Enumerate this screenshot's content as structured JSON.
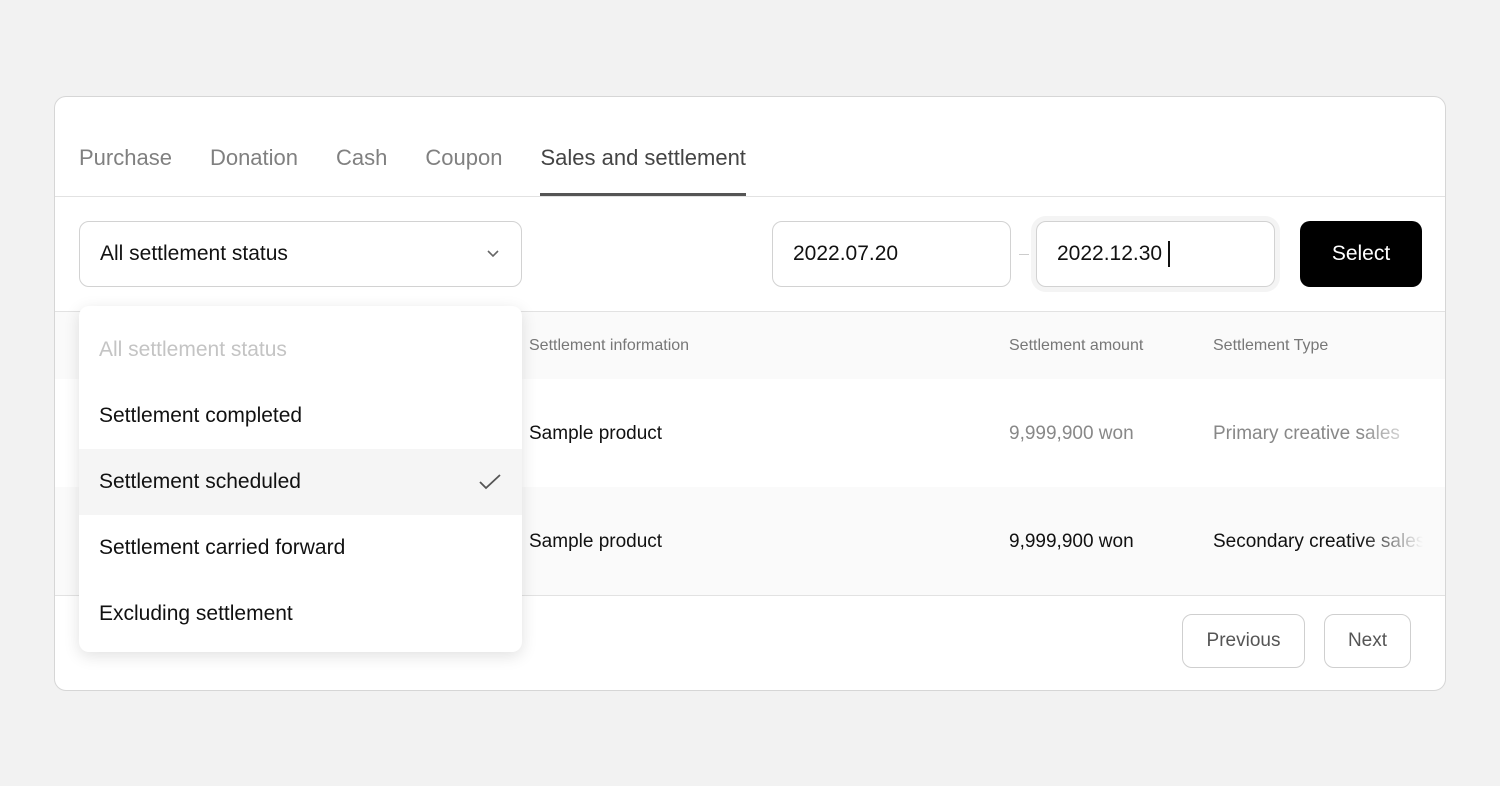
{
  "tabs": [
    {
      "label": "Purchase"
    },
    {
      "label": "Donation"
    },
    {
      "label": "Cash"
    },
    {
      "label": "Coupon"
    },
    {
      "label": "Sales and settlement",
      "active": true
    }
  ],
  "filter": {
    "status_value": "All settlement status",
    "date_from": "2022.07.20",
    "date_to": "2022.12.30",
    "select_label": "Select"
  },
  "table": {
    "headers": [
      "Settlement information",
      "Settlement amount",
      "Settlement Type"
    ],
    "rows": [
      {
        "info": "Sample product",
        "amount": "9,999,900 won",
        "type": "Primary creative sales"
      },
      {
        "info": "Sample product",
        "amount": "9,999,900 won",
        "type": "Secondary creative sales"
      }
    ]
  },
  "pagination": {
    "previous": "Previous",
    "next": "Next"
  },
  "dropdown": {
    "options": [
      "All settlement status",
      "Settlement completed",
      "Settlement scheduled",
      "Settlement carried forward",
      "Excluding settlement"
    ],
    "selected": "Settlement scheduled"
  },
  "icons": {
    "chevron": "chevron-down-icon",
    "check": "check-icon"
  }
}
